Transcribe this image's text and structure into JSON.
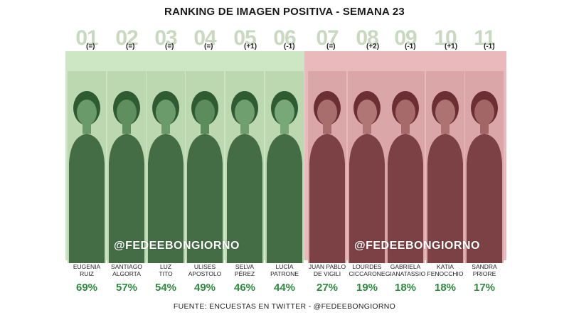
{
  "title": "RANKING DE IMAGEN POSITIVA - SEMANA 23",
  "watermark": "@FEDEEBONGIORNO",
  "footer": "FUENTE: ENCUESTAS EN TWITTER - @FEDEEBONGIORNO",
  "colors": {
    "green_band": "#cde6c3",
    "red_band": "#eab9bb",
    "percent_text": "#2e8b3e"
  },
  "ranking": [
    {
      "rank": "01",
      "change": "(=)",
      "name_line1": "EUGENIA",
      "name_line2": "RUIZ",
      "percent": "69%"
    },
    {
      "rank": "02",
      "change": "(=)",
      "name_line1": "SANTIAGO",
      "name_line2": "ALGORTA",
      "percent": "57%"
    },
    {
      "rank": "03",
      "change": "(=)",
      "name_line1": "LUZ",
      "name_line2": "TITO",
      "percent": "54%"
    },
    {
      "rank": "04",
      "change": "(=)",
      "name_line1": "ULISES",
      "name_line2": "APOSTOLO",
      "percent": "49%"
    },
    {
      "rank": "05",
      "change": "(+1)",
      "name_line1": "SELVA",
      "name_line2": "PÉREZ",
      "percent": "46%"
    },
    {
      "rank": "06",
      "change": "(-1)",
      "name_line1": "LUCÍA",
      "name_line2": "PATRONE",
      "percent": "44%"
    },
    {
      "rank": "07",
      "change": "(=)",
      "name_line1": "JUAN PABLO",
      "name_line2": "DE VIGILI",
      "percent": "27%"
    },
    {
      "rank": "08",
      "change": "(+2)",
      "name_line1": "LOURDES",
      "name_line2": "CICCARONE",
      "percent": "19%"
    },
    {
      "rank": "09",
      "change": "(-1)",
      "name_line1": "GABRIELA",
      "name_line2": "GIANATASSIO",
      "percent": "18%"
    },
    {
      "rank": "10",
      "change": "(+1)",
      "name_line1": "KATIA",
      "name_line2": "FENOCCHIO",
      "percent": "18%"
    },
    {
      "rank": "11",
      "change": "(-1)",
      "name_line1": "SANDRA",
      "name_line2": "PRIORE",
      "percent": "17%"
    }
  ]
}
